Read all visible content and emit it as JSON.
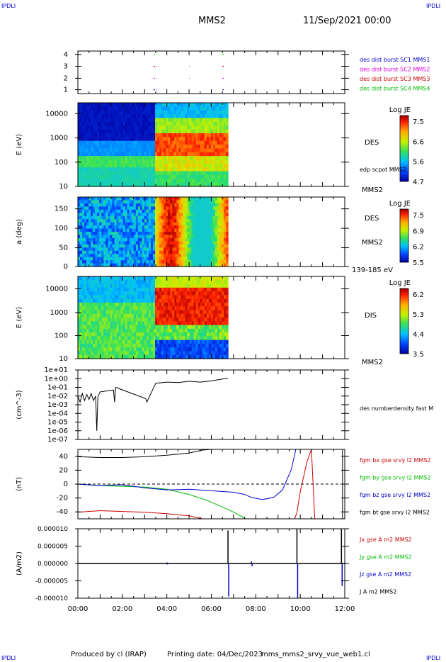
{
  "header": {
    "corner_left": "IPDLI",
    "corner_right": "IPDLI",
    "mission": "MMS2",
    "datetime": "11/Sep/2021 00:00"
  },
  "footer": {
    "produced_by": "Produced by cl (IRAP)",
    "printing_date": "Printing date: 04/Dec/2023",
    "filename": "mms_mms2_srvy_vue_web1.cl",
    "corner_left": "IPDLI",
    "corner_right": "IPDLI"
  },
  "time_axis": {
    "ticks": [
      "00:00",
      "02:00",
      "04:00",
      "06:00",
      "08:00",
      "10:00",
      "12:00"
    ]
  },
  "colors": {
    "black": "#000000",
    "red": "#cc0000",
    "green": "#00bb00",
    "blue": "#0000cc",
    "magenta": "#dd00dd",
    "legend_blue": "#0000cc"
  },
  "chart_data": [
    {
      "type": "scatter",
      "panel": "burst",
      "y_ticks": [
        "4",
        "3",
        "2",
        "1"
      ],
      "legend": [
        {
          "label": "des dist burst SC1 MMS1",
          "color": "#0000cc"
        },
        {
          "label": "des dist burst SC2 MMS2",
          "color": "#dd00dd"
        },
        {
          "label": "des dist burst SC3 MMS3",
          "color": "#cc0000"
        },
        {
          "label": "des dist burst SC4 MMS4",
          "color": "#00bb00"
        }
      ],
      "series": [
        {
          "sc": 4,
          "intervals": [
            [
              3.4,
              3.55
            ],
            [
              6.5,
              6.6
            ]
          ]
        },
        {
          "sc": 3,
          "intervals": [
            [
              3.4,
              3.55
            ],
            [
              5.0,
              5.02
            ],
            [
              6.5,
              6.6
            ]
          ]
        },
        {
          "sc": 2,
          "intervals": [
            [
              3.4,
              3.55
            ],
            [
              5.0,
              5.02
            ],
            [
              6.5,
              6.6
            ]
          ]
        },
        {
          "sc": 1,
          "intervals": [
            [
              3.4,
              3.55
            ],
            [
              6.5,
              6.6
            ]
          ]
        }
      ]
    },
    {
      "type": "heatmap",
      "panel": "des-energy",
      "ylabel": "E (eV)",
      "y_ticks": [
        "10000",
        "1000",
        "100",
        "10"
      ],
      "ylim": [
        10,
        30000
      ],
      "y_scale": "log",
      "right_label": "DES",
      "bottom_label": "MMS2",
      "overlay_label": "edp scpot MMS2",
      "colorbar": {
        "title": "Log JE",
        "ticks": [
          "7.5",
          "6.6",
          "5.6",
          "4.7"
        ],
        "range": [
          4.7,
          7.5
        ]
      },
      "data_end_hour": 6.75
    },
    {
      "type": "heatmap",
      "panel": "des-pitch",
      "ylabel": "a (deg)",
      "y_ticks": [
        "150",
        "100",
        "50",
        "0"
      ],
      "ylim": [
        0,
        180
      ],
      "right_label": "DES",
      "right_label2": "MMS2",
      "bottom_label": "139-185 eV",
      "colorbar": {
        "title": "Log JE",
        "ticks": [
          "7.5",
          "6.9",
          "6.2",
          "5.5"
        ],
        "range": [
          5.5,
          7.5
        ]
      },
      "data_end_hour": 6.75
    },
    {
      "type": "heatmap",
      "panel": "dis-energy",
      "ylabel": "E (eV)",
      "y_ticks": [
        "10000",
        "1000",
        "100",
        "10"
      ],
      "ylim": [
        10,
        30000
      ],
      "y_scale": "log",
      "right_label": "DIS",
      "bottom_label": "MMS2",
      "colorbar": {
        "title": "Log JE",
        "ticks": [
          "6.2",
          "5.3",
          "4.4",
          "3.5"
        ],
        "range": [
          3.5,
          6.2
        ]
      },
      "data_end_hour": 6.75
    },
    {
      "type": "line",
      "panel": "density",
      "ylabel": "(cm^-3)",
      "y_ticks": [
        "1e+01",
        "1e+00",
        "1e-01",
        "1e-02",
        "1e-03",
        "1e-04",
        "1e-05",
        "1e-06",
        "1e-07"
      ],
      "ylim": [
        1e-07,
        10
      ],
      "y_scale": "log",
      "legend": [
        {
          "label": "des numberdensity fast M",
          "color": "#000000"
        }
      ],
      "series": [
        {
          "name": "des numberdensity fast M",
          "x": [
            0.0,
            0.1,
            0.2,
            0.3,
            0.4,
            0.5,
            0.6,
            0.7,
            0.8,
            0.85,
            0.9,
            1.0,
            1.6,
            1.65,
            1.7,
            3.05,
            3.1,
            3.5,
            4.0,
            4.5,
            5.0,
            5.5,
            6.0,
            6.5,
            6.75
          ],
          "y": [
            0.01,
            0.002,
            0.02,
            0.003,
            0.015,
            0.004,
            0.02,
            0.003,
            0.01,
            1e-06,
            0.008,
            0.03,
            0.05,
            0.002,
            0.1,
            0.005,
            0.002,
            0.3,
            0.4,
            0.35,
            0.5,
            0.4,
            0.55,
            0.9,
            1.1
          ]
        }
      ]
    },
    {
      "type": "line",
      "panel": "magnetic-field",
      "ylabel": "(nT)",
      "y_ticks": [
        "40",
        "20",
        "0",
        "-20",
        "-40"
      ],
      "ylim": [
        -47,
        47
      ],
      "legend": [
        {
          "label": "fgm bx gse srvy l2 MMS2",
          "color": "#cc0000"
        },
        {
          "label": "fgm by gse srvy l2 MMS2",
          "color": "#00bb00"
        },
        {
          "label": "fgm bz gse srvy l2 MMS2",
          "color": "#0000cc"
        },
        {
          "label": "fgm bt gse srvy l2 MMS2",
          "color": "#000000"
        }
      ],
      "series": [
        {
          "name": "fgm bt gse srvy l2 MMS2",
          "x": [
            0.0,
            1.0,
            2.0,
            3.0,
            4.0,
            5.0,
            5.6,
            6.0
          ],
          "y": [
            37,
            36,
            36,
            37,
            39,
            42,
            46,
            50
          ]
        },
        {
          "name": "fgm bx gse srvy l2 MMS2",
          "x": [
            0.0,
            1.0,
            2.0,
            3.0,
            4.0,
            5.0,
            5.6,
            9.75,
            9.85,
            10.0,
            10.3,
            10.5,
            10.65
          ],
          "y": [
            -38,
            -36,
            -37,
            -38,
            -40,
            -43,
            -48,
            -48,
            -38,
            -10,
            30,
            50,
            -48
          ]
        },
        {
          "name": "fgm by gse srvy l2 MMS2",
          "x": [
            0.0,
            1.0,
            2.0,
            3.0,
            4.0,
            5.0,
            5.8,
            6.5,
            7.0,
            7.5
          ],
          "y": [
            0,
            -2,
            -3,
            -4,
            -7,
            -14,
            -22,
            -31,
            -38,
            -46
          ]
        },
        {
          "name": "fgm bz gse srvy l2 MMS2",
          "x": [
            0.0,
            1.0,
            2.0,
            3.0,
            4.0,
            5.0,
            6.0,
            7.0,
            7.5,
            7.8,
            8.3,
            8.8,
            9.2,
            9.6,
            9.8
          ],
          "y": [
            0,
            -2,
            -1,
            -5,
            -8,
            -7,
            -9,
            -11,
            -14,
            -18,
            -21,
            -18,
            -8,
            20,
            50
          ]
        },
        {
          "name": "zero",
          "x": [
            0.0,
            12.0
          ],
          "y": [
            0,
            0
          ]
        }
      ]
    },
    {
      "type": "line",
      "panel": "current-density",
      "ylabel": "(A/m2)",
      "y_ticks": [
        "0.000010",
        "0.000005",
        "0.000000",
        "-0.000005",
        "-0.000010"
      ],
      "ylim": [
        -1e-05,
        1e-05
      ],
      "legend": [
        {
          "label": "Jx gse A m2 MMS2",
          "color": "#cc0000"
        },
        {
          "label": "Jy gse A m2 MMS2",
          "color": "#00bb00"
        },
        {
          "label": "Jz gse A m2 MMS2",
          "color": "#0000cc"
        },
        {
          "label": "J A m2 MMS2",
          "color": "#000000"
        }
      ],
      "spikes": [
        {
          "x": 6.75,
          "pos": 9.5e-06,
          "neg": -9.5e-06
        },
        {
          "x": 9.85,
          "pos": 1e-05,
          "neg": -1e-05
        },
        {
          "x": 11.85,
          "pos": 1e-05,
          "neg": -6.5e-06
        },
        {
          "x": 7.8,
          "pos": 6e-07,
          "neg": -8e-07
        },
        {
          "x": 4.0,
          "pos": 3e-07,
          "neg": -3e-07
        }
      ]
    }
  ]
}
